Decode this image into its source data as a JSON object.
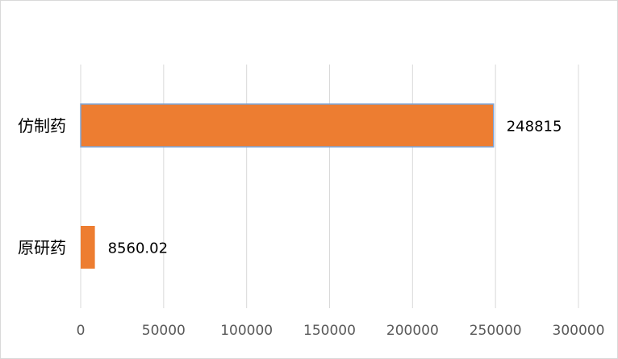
{
  "chart_data": {
    "type": "barh",
    "categories": [
      "仿制药",
      "原研药"
    ],
    "values": [
      248815,
      8560.02
    ],
    "color": "#ed7d31",
    "xlim": [
      0,
      300000
    ],
    "xticks": [
      0,
      50000,
      100000,
      150000,
      200000,
      250000,
      300000
    ],
    "grid": true
  }
}
